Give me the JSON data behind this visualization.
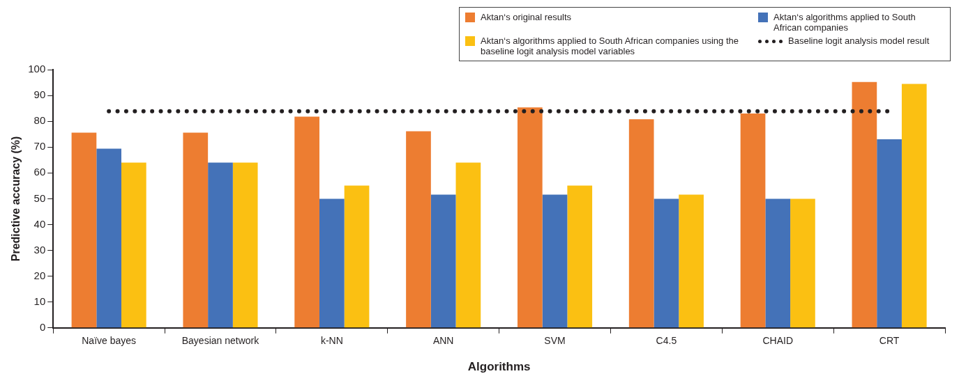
{
  "chart_data": {
    "type": "bar",
    "xlabel": "Algorithms",
    "ylabel": "Predictive accuracy (%)",
    "categories": [
      "Naïve bayes",
      "Bayesian network",
      "k-NN",
      "ANN",
      "SVM",
      "C4.5",
      "CHAID",
      "CRT"
    ],
    "series": [
      {
        "name": "Aktan‘s original results",
        "color": "#ed7d31",
        "values": [
          75.6,
          75.6,
          81.8,
          76.1,
          85.4,
          80.8,
          83.0,
          95.2
        ]
      },
      {
        "name": "Aktan‘s algorithms applied to South African companies",
        "color": "#4472b8",
        "values": [
          69.4,
          64.0,
          50.0,
          51.6,
          51.6,
          50.0,
          50.0,
          73.0
        ]
      },
      {
        "name": "Aktan‘s algorithms applied to South African companies using the baseline logit analysis model variables",
        "color": "#fbc012",
        "values": [
          64.0,
          64.0,
          55.1,
          64.0,
          55.1,
          51.6,
          50.0,
          94.5
        ]
      },
      {
        "name": "Baseline logit analysis model result",
        "type": "line",
        "color": "#231f20",
        "line_style": "dotted",
        "marker": "none",
        "values": [
          83.9,
          83.9,
          83.9,
          83.9,
          83.9,
          83.9,
          83.9,
          83.9
        ]
      }
    ],
    "ylim": [
      0,
      100
    ],
    "yticks": [
      0,
      10,
      20,
      30,
      40,
      50,
      60,
      70,
      80,
      90,
      100
    ],
    "grid": false,
    "legend": "top right"
  }
}
